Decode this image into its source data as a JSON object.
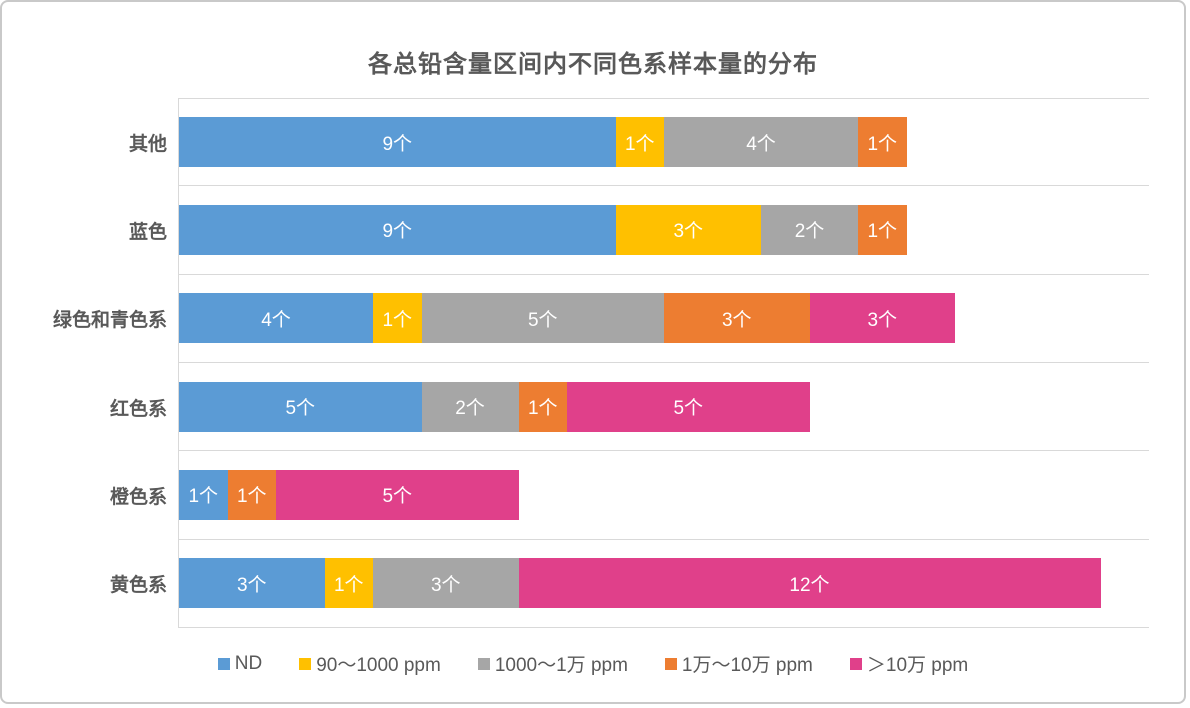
{
  "chart_data": {
    "type": "bar",
    "orientation": "horizontal-stacked",
    "title": "各总铅含量区间内不同色系样本量的分布",
    "categories": [
      "其他",
      "蓝色",
      "绿色和青色系",
      "红色系",
      "橙色系",
      "黄色系"
    ],
    "series": [
      {
        "name": "ND",
        "color": "#5B9BD5",
        "values": [
          9,
          9,
          4,
          5,
          1,
          3
        ]
      },
      {
        "name": "90～1000 ppm",
        "color": "#FFC000",
        "values": [
          1,
          3,
          1,
          0,
          0,
          1
        ]
      },
      {
        "name": "1000～1万 ppm",
        "color": "#A6A6A6",
        "values": [
          4,
          2,
          5,
          2,
          0,
          3
        ]
      },
      {
        "name": "1万～10万 ppm",
        "color": "#ED7D31",
        "values": [
          1,
          1,
          3,
          1,
          1,
          0
        ]
      },
      {
        "name": "＞10万 ppm",
        "color": "#E0408A",
        "values": [
          0,
          0,
          3,
          5,
          5,
          12
        ]
      }
    ],
    "category_totals": [
      15,
      15,
      16,
      13,
      7,
      19
    ],
    "xlim": [
      0,
      20
    ],
    "value_suffix": "个",
    "data_label_color": "#FFFFFF",
    "grid": "category separator lines, light gray",
    "gridline_color": "#D9D9D9",
    "axis_line_color": "#D9D9D9",
    "title_color": "#595959",
    "label_color": "#595959",
    "legend_position": "bottom"
  }
}
